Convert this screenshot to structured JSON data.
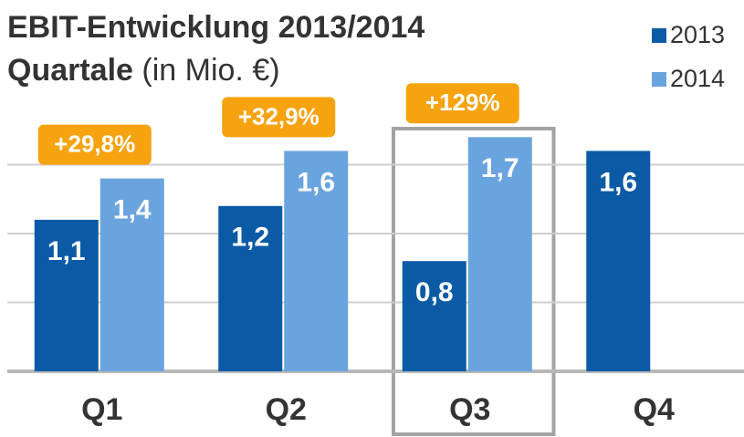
{
  "chart_data": {
    "type": "bar",
    "title": "EBIT-Entwicklung 2013/2014",
    "subtitle": "Quartale",
    "unit_label": "(in Mio. €)",
    "categories": [
      "Q1",
      "Q2",
      "Q3",
      "Q4"
    ],
    "series": [
      {
        "name": "2013",
        "color": "#0b5aa6",
        "values": [
          1.1,
          1.2,
          0.8,
          1.6
        ],
        "value_labels": [
          "1,1",
          "1,2",
          "0,8",
          "1,6"
        ]
      },
      {
        "name": "2014",
        "color": "#6aa4df",
        "values": [
          1.4,
          1.6,
          1.7,
          null
        ],
        "value_labels": [
          "1,4",
          "1,6",
          "1,7",
          null
        ]
      }
    ],
    "growth_labels": [
      "+29,8%",
      "+32,9%",
      "+129%",
      null
    ],
    "growth_color": "#f6a30f",
    "highlight": "Q3",
    "ylim": [
      0,
      2
    ],
    "yticks": [
      0,
      0.5,
      1,
      1.5
    ],
    "grid": true,
    "legend": "top-right"
  }
}
